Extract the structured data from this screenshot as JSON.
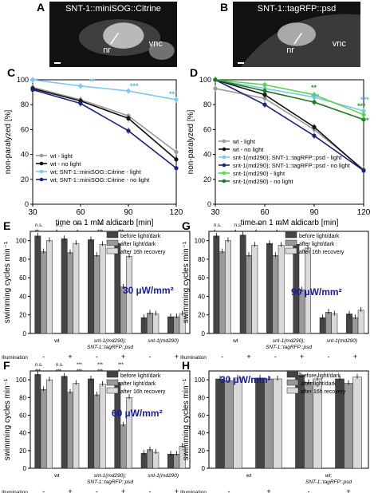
{
  "panels": {
    "A": {
      "letter": "A",
      "caption": "SNT-1::miniSOG::Citrine",
      "labels": [
        "nr",
        "vnc"
      ]
    },
    "B": {
      "letter": "B",
      "caption": "SNT-1::tagRFP::psd",
      "labels": [
        "nr",
        "vnc"
      ]
    },
    "C": {
      "letter": "C"
    },
    "D": {
      "letter": "D"
    },
    "E": {
      "letter": "E",
      "intensity": "30 µW/mm²",
      "sig_labels": [
        "n.s.",
        "n.s.",
        "***",
        "***",
        "**",
        "**",
        "*",
        "*",
        "***",
        "***"
      ]
    },
    "F": {
      "letter": "F",
      "intensity": "60 µW/mm²",
      "sig_labels": [
        "n.s.",
        "n.s.",
        "***",
        "***",
        "***",
        "***",
        "***",
        "***",
        "***",
        "*"
      ]
    },
    "G": {
      "letter": "G",
      "intensity": "90 µW/mm²",
      "sig_labels": [
        "n.s.",
        "n.s.",
        "***",
        "***",
        "*",
        "*",
        "*",
        "*",
        "*"
      ]
    },
    "H": {
      "letter": "H",
      "intensity": "30 µW/mm²"
    }
  },
  "colors": {
    "grey": "#9a9a9a",
    "black": "#111111",
    "lightblue": "#7ec8f0",
    "navy": "#1a237e",
    "lightgreen": "#59d64a",
    "darkgreen": "#1e7a1e",
    "bar_before": "#444444",
    "bar_after": "#999999",
    "bar_recovery": "#d9d9d9",
    "intensity_text": "#1a1aa0",
    "star_blue": "#5ab4e6",
    "star_green": "#2e9a2e"
  },
  "chart_data": [
    {
      "panel": "C",
      "type": "line",
      "xlabel": "time on 1 mM aldicarb [min]",
      "ylabel": "non-paralyzed [%]",
      "x": [
        30,
        60,
        90,
        120
      ],
      "xticks": [
        30,
        60,
        90,
        120
      ],
      "ylim": [
        0,
        100
      ],
      "yticks": [
        0,
        20,
        40,
        60,
        80,
        100
      ],
      "series": [
        {
          "name": "wt - light",
          "color": "#9a9a9a",
          "values": [
            94,
            84,
            71,
            42
          ]
        },
        {
          "name": "wt - no light",
          "color": "#111111",
          "values": [
            93,
            83,
            69,
            36
          ]
        },
        {
          "name": "wt; SNT-1::miniSOG::Citrine - light",
          "color": "#7ec8f0",
          "values": [
            100,
            95,
            91,
            84
          ]
        },
        {
          "name": "wt; SNT-1::miniSOG::Citrine - no light",
          "color": "#1a237e",
          "values": [
            92,
            81,
            59,
            29
          ]
        }
      ],
      "annotations": [
        "**",
        "***",
        "***"
      ]
    },
    {
      "panel": "D",
      "type": "line",
      "xlabel": "time on 1 mM aldicarb [min]",
      "ylabel": "non-paralyzed [%]",
      "x": [
        30,
        60,
        90,
        120
      ],
      "xticks": [
        30,
        60,
        90,
        120
      ],
      "ylim": [
        0,
        100
      ],
      "yticks": [
        0,
        20,
        40,
        60,
        80,
        100
      ],
      "series": [
        {
          "name": "wt - light",
          "color": "#9a9a9a",
          "values": [
            93,
            85,
            60,
            28
          ]
        },
        {
          "name": "wt - no light",
          "color": "#111111",
          "values": [
            100,
            88,
            62,
            27
          ]
        },
        {
          "name": "snt-1(md290); SNT-1::tagRFP::psd - light",
          "color": "#7ec8f0",
          "values": [
            100,
            93,
            86,
            75
          ]
        },
        {
          "name": "snt-1(md290); SNT-1::tagRFP::psd - no light",
          "color": "#1a237e",
          "values": [
            100,
            80,
            55,
            27
          ]
        },
        {
          "name": "snt-1(md290) - light",
          "color": "#59d64a",
          "values": [
            100,
            96,
            88,
            72
          ]
        },
        {
          "name": "snt-1(md290) - no light",
          "color": "#1e7a1e",
          "values": [
            100,
            91,
            82,
            68
          ]
        }
      ],
      "annotations": [
        "**",
        "***",
        "***",
        "***",
        "***"
      ]
    },
    {
      "panel": "E",
      "type": "bar",
      "ylabel": "swimming cycles min⁻¹",
      "ylim": [
        0,
        110
      ],
      "yticks": [
        0,
        20,
        40,
        60,
        80,
        100
      ],
      "series_names": [
        "before light/dark",
        "after light/dark",
        "after 16h recovery"
      ],
      "groups": [
        "wt",
        "snt-1(md290); SNT-1::tagRFP::psd",
        "snt-1(md290)"
      ],
      "illumination": [
        "-",
        "+",
        "-",
        "+",
        "-",
        "+"
      ],
      "values": [
        [
          105,
          88,
          100
        ],
        [
          102,
          87,
          97
        ],
        [
          101,
          84,
          96
        ],
        [
          97,
          50,
          83
        ],
        [
          17,
          22,
          21
        ],
        [
          18,
          18,
          21
        ]
      ]
    },
    {
      "panel": "F",
      "type": "bar",
      "ylabel": "swimming cycles min⁻¹",
      "ylim": [
        0,
        110
      ],
      "yticks": [
        0,
        20,
        40,
        60,
        80,
        100
      ],
      "series_names": [
        "before light/dark",
        "after light/dark",
        "after 16h recovery"
      ],
      "groups": [
        "wt",
        "snt-1(md290); SNT-1::tagRFP::psd",
        "snt-1(md290)"
      ],
      "illumination": [
        "-",
        "+",
        "-",
        "+",
        "-",
        "+"
      ],
      "values": [
        [
          106,
          89,
          100
        ],
        [
          104,
          86,
          96
        ],
        [
          101,
          83,
          95
        ],
        [
          97,
          49,
          80
        ],
        [
          17,
          21,
          18
        ],
        [
          16,
          16,
          25
        ]
      ]
    },
    {
      "panel": "G",
      "type": "bar",
      "ylabel": "swimming cycles min⁻¹",
      "ylim": [
        0,
        110
      ],
      "yticks": [
        0,
        20,
        40,
        60,
        80,
        100
      ],
      "series_names": [
        "before light/dark",
        "after light/dark",
        "after 16h recovery"
      ],
      "groups": [
        "wt",
        "snt-1(md290); SNT-1::tagRFP::psd",
        "snt-1(md290)"
      ],
      "illumination": [
        "-",
        "+",
        "-",
        "+",
        "-",
        "+"
      ],
      "values": [
        [
          105,
          88,
          100
        ],
        [
          106,
          84,
          95
        ],
        [
          97,
          84,
          95
        ],
        [
          96,
          47,
          92
        ],
        [
          17,
          23,
          21
        ],
        [
          21,
          17,
          25
        ]
      ]
    },
    {
      "panel": "H",
      "type": "bar",
      "ylabel": "swimming cycles min⁻¹",
      "ylim": [
        0,
        110
      ],
      "yticks": [
        0,
        20,
        40,
        60,
        80,
        100
      ],
      "series_names": [
        "before light/dark",
        "after light/dark",
        "after 16h recovery"
      ],
      "groups": [
        "wt",
        "wt; SNT-1::tagRFP::psd"
      ],
      "illumination": [
        "-",
        "+",
        "-",
        "+"
      ],
      "values": [
        [
          101,
          99,
          102
        ],
        [
          102,
          101,
          101
        ],
        [
          105,
          97,
          101
        ],
        [
          101,
          96,
          103
        ]
      ]
    }
  ]
}
